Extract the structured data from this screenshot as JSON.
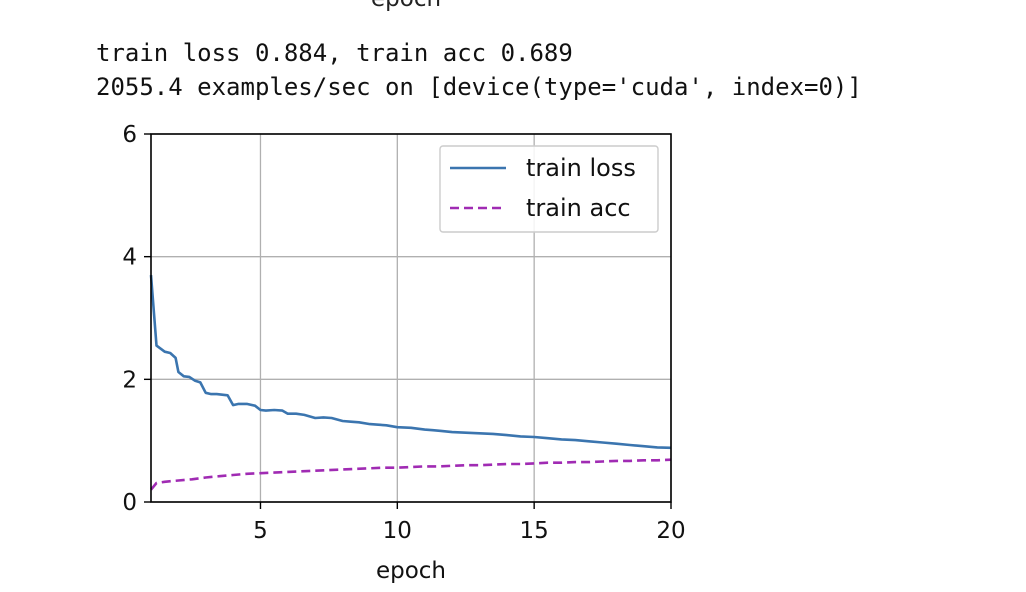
{
  "log": {
    "line1": "train loss 0.884, train acc 0.689",
    "line2": "2055.4 examples/sec on [device(type='cuda', index=0)]"
  },
  "prev_xlabel": "epoch",
  "chart_data": {
    "type": "line",
    "title": "",
    "xlabel": "epoch",
    "ylabel": "",
    "xlim": [
      1,
      20
    ],
    "ylim": [
      0,
      6
    ],
    "xticks": [
      5,
      10,
      15,
      20
    ],
    "yticks": [
      0,
      2,
      4,
      6
    ],
    "grid": true,
    "legend_position": "top-right",
    "colors": {
      "train_loss": "#3b75af",
      "train_acc": "#a02bb3",
      "grid": "#b0b0b0"
    },
    "series": [
      {
        "name": "train loss",
        "style": "solid",
        "x": [
          1.0,
          1.2,
          1.5,
          1.7,
          1.9,
          2.0,
          2.2,
          2.4,
          2.6,
          2.8,
          3.0,
          3.2,
          3.4,
          3.6,
          3.8,
          4.0,
          4.2,
          4.5,
          4.8,
          5.0,
          5.2,
          5.5,
          5.8,
          6.0,
          6.3,
          6.6,
          7.0,
          7.3,
          7.6,
          8.0,
          8.3,
          8.6,
          9.0,
          9.3,
          9.6,
          10.0,
          10.5,
          11.0,
          11.3,
          11.6,
          12.0,
          12.5,
          13.0,
          13.5,
          14.0,
          14.5,
          15.0,
          15.5,
          16.0,
          16.5,
          17.0,
          17.5,
          18.0,
          18.5,
          19.0,
          19.5,
          20.0
        ],
        "values": [
          3.7,
          2.55,
          2.45,
          2.43,
          2.35,
          2.12,
          2.05,
          2.04,
          1.98,
          1.95,
          1.78,
          1.76,
          1.76,
          1.75,
          1.74,
          1.58,
          1.6,
          1.6,
          1.57,
          1.5,
          1.49,
          1.5,
          1.49,
          1.44,
          1.44,
          1.42,
          1.37,
          1.38,
          1.37,
          1.32,
          1.31,
          1.3,
          1.27,
          1.26,
          1.25,
          1.22,
          1.21,
          1.18,
          1.17,
          1.16,
          1.14,
          1.13,
          1.12,
          1.11,
          1.09,
          1.07,
          1.06,
          1.04,
          1.02,
          1.01,
          0.99,
          0.97,
          0.95,
          0.93,
          0.91,
          0.89,
          0.884
        ]
      },
      {
        "name": "train acc",
        "style": "dashed",
        "x": [
          1.0,
          1.2,
          1.5,
          2.0,
          2.5,
          3.0,
          3.5,
          4.0,
          4.5,
          5.0,
          5.5,
          6.0,
          6.5,
          7.0,
          7.5,
          8.0,
          8.5,
          9.0,
          9.5,
          10.0,
          10.5,
          11.0,
          11.5,
          12.0,
          12.5,
          13.0,
          13.5,
          14.0,
          14.5,
          15.0,
          15.5,
          16.0,
          16.5,
          17.0,
          17.5,
          18.0,
          18.5,
          19.0,
          19.5,
          20.0
        ],
        "values": [
          0.2,
          0.31,
          0.33,
          0.35,
          0.37,
          0.4,
          0.42,
          0.44,
          0.46,
          0.47,
          0.48,
          0.49,
          0.5,
          0.51,
          0.52,
          0.53,
          0.54,
          0.55,
          0.56,
          0.56,
          0.57,
          0.58,
          0.58,
          0.59,
          0.6,
          0.6,
          0.61,
          0.62,
          0.62,
          0.63,
          0.64,
          0.64,
          0.65,
          0.65,
          0.66,
          0.67,
          0.67,
          0.68,
          0.68,
          0.689
        ]
      }
    ]
  }
}
